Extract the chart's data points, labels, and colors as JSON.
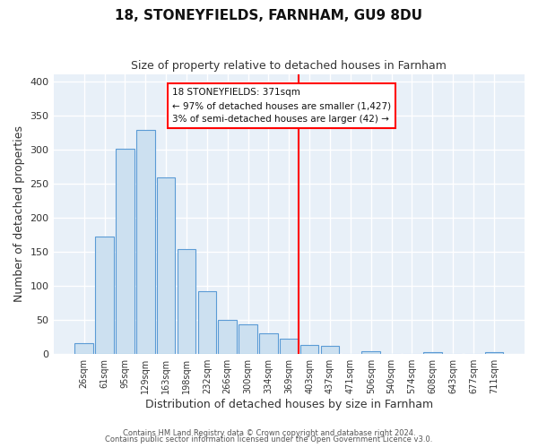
{
  "title": "18, STONEYFIELDS, FARNHAM, GU9 8DU",
  "subtitle": "Size of property relative to detached houses in Farnham",
  "xlabel": "Distribution of detached houses by size in Farnham",
  "ylabel": "Number of detached properties",
  "bar_labels": [
    "26sqm",
    "61sqm",
    "95sqm",
    "129sqm",
    "163sqm",
    "198sqm",
    "232sqm",
    "266sqm",
    "300sqm",
    "334sqm",
    "369sqm",
    "403sqm",
    "437sqm",
    "471sqm",
    "506sqm",
    "540sqm",
    "574sqm",
    "608sqm",
    "643sqm",
    "677sqm",
    "711sqm"
  ],
  "bar_values": [
    15,
    172,
    301,
    329,
    259,
    153,
    92,
    50,
    43,
    30,
    22,
    13,
    11,
    0,
    3,
    0,
    0,
    2,
    0,
    0,
    2
  ],
  "bar_color": "#cce0f0",
  "bar_edge_color": "#5b9bd5",
  "vline_x_index": 10,
  "vline_color": "red",
  "annotation_title": "18 STONEYFIELDS: 371sqm",
  "annotation_line1": "← 97% of detached houses are smaller (1,427)",
  "annotation_line2": "3% of semi-detached houses are larger (42) →",
  "ylim": [
    0,
    410
  ],
  "yticks": [
    0,
    50,
    100,
    150,
    200,
    250,
    300,
    350,
    400
  ],
  "footer1": "Contains HM Land Registry data © Crown copyright and database right 2024.",
  "footer2": "Contains public sector information licensed under the Open Government Licence v3.0.",
  "bg_color": "#ffffff",
  "plot_bg_color": "#e8f0f8",
  "grid_color": "#ffffff",
  "title_fontsize": 11,
  "subtitle_fontsize": 9
}
